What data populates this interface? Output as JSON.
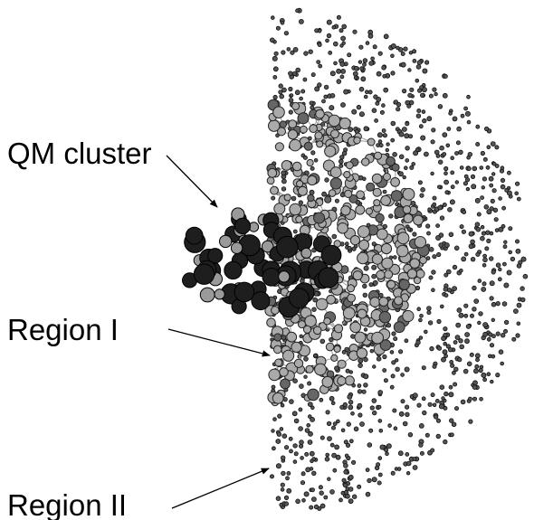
{
  "labels": {
    "qm_cluster": "QM cluster",
    "region_1": "Region I",
    "region_2": "Region II"
  }
}
